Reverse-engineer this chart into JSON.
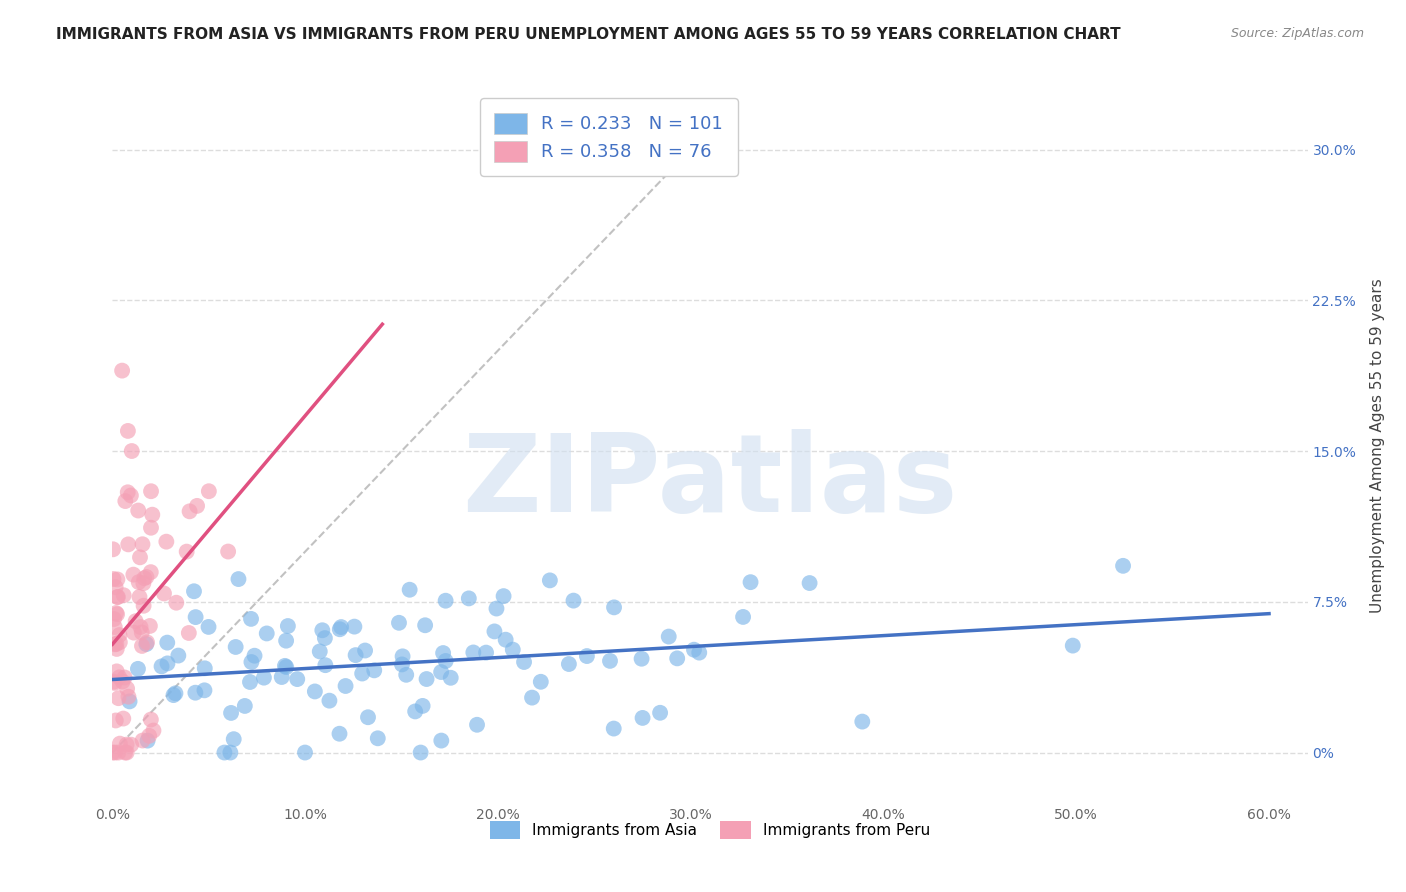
{
  "title": "IMMIGRANTS FROM ASIA VS IMMIGRANTS FROM PERU UNEMPLOYMENT AMONG AGES 55 TO 59 YEARS CORRELATION CHART",
  "source": "Source: ZipAtlas.com",
  "ylabel": "Unemployment Among Ages 55 to 59 years",
  "xlim": [
    0.0,
    0.62
  ],
  "ylim": [
    -0.025,
    0.33
  ],
  "xticks": [
    0.0,
    0.1,
    0.2,
    0.3,
    0.4,
    0.5,
    0.6
  ],
  "xticklabels": [
    "0.0%",
    "10.0%",
    "20.0%",
    "30.0%",
    "40.0%",
    "50.0%",
    "60.0%"
  ],
  "yticks": [
    0.0,
    0.075,
    0.15,
    0.225,
    0.3
  ],
  "yticklabels": [
    "0%",
    "7.5%",
    "15.0%",
    "22.5%",
    "30.0%"
  ],
  "asia_color": "#7eb6e8",
  "peru_color": "#f4a0b5",
  "asia_R": 0.233,
  "asia_N": 101,
  "peru_R": 0.358,
  "peru_N": 76,
  "asia_trend_color": "#4472c4",
  "peru_trend_color": "#e05080",
  "ref_line_color": "#bbbbbb",
  "watermark": "ZIPatlas",
  "watermark_color": "#d0dff0",
  "background_color": "#ffffff",
  "grid_color": "#dddddd",
  "title_fontsize": 11,
  "label_fontsize": 11,
  "tick_fontsize": 10,
  "legend_fontsize": 13,
  "legend_text_color": "#4472c4"
}
